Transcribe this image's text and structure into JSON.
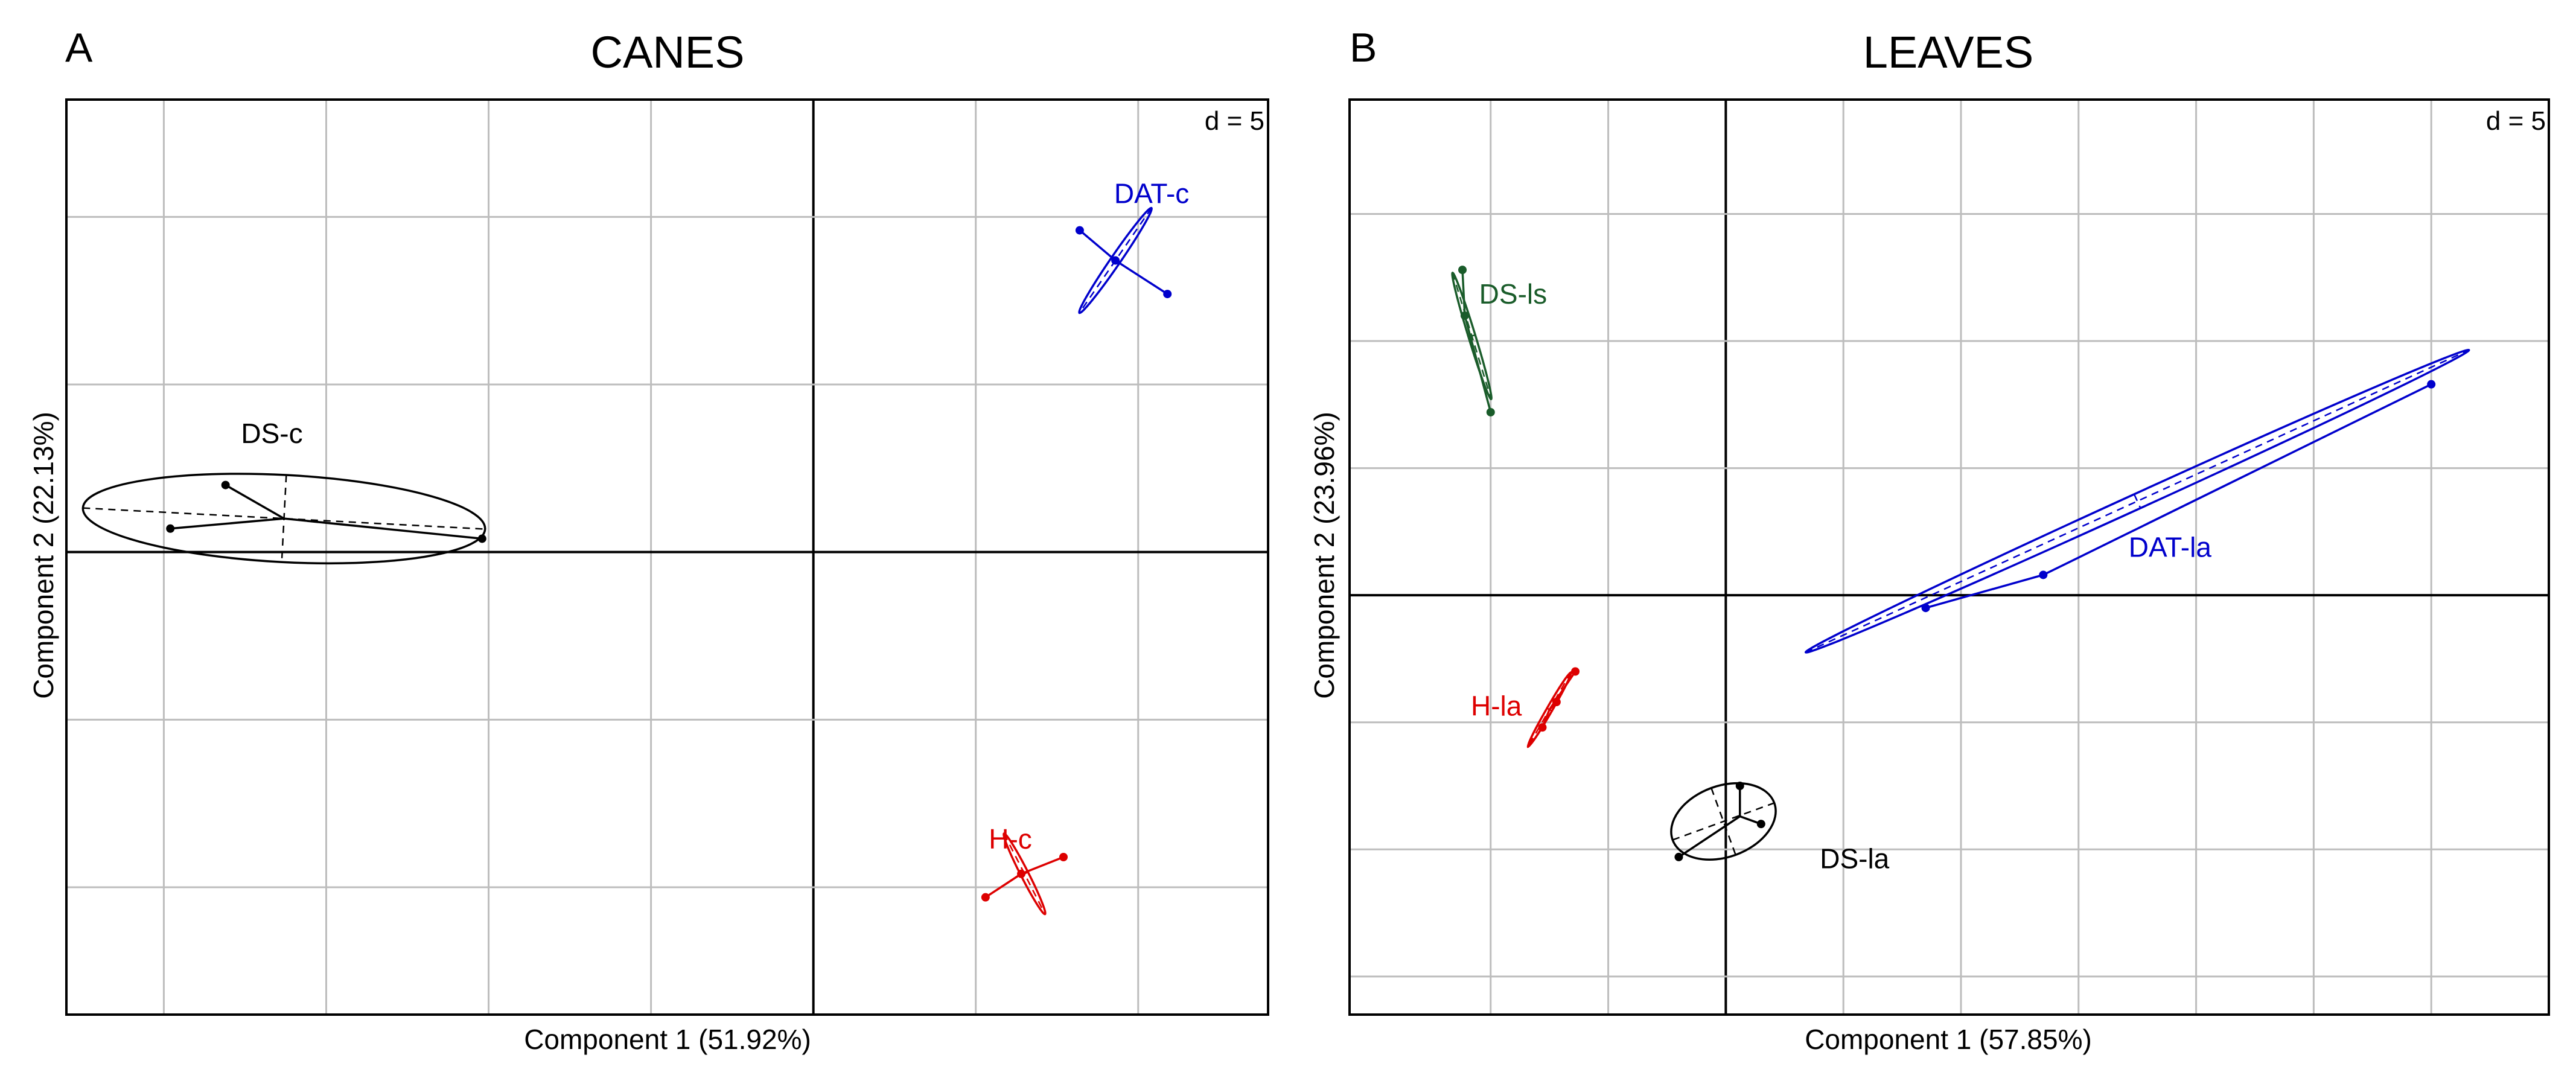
{
  "colors": {
    "grid": "#bdbdbd",
    "axis_zero": "#000000",
    "frame": "#000000",
    "dat": "#0000cc",
    "h": "#dd0000",
    "ds": "#000000",
    "ds_ls": "#1a5c2a"
  },
  "chart_data": [
    {
      "type": "scatter",
      "panel_label": "A",
      "title": "CANES",
      "xlabel": "Component 1 (51.92%)",
      "ylabel": "Component 2 (22.13%)",
      "scale_label": "d = 5",
      "grid": true,
      "xlim": [
        -23.0,
        14.0
      ],
      "ylim": [
        -13.8,
        13.5
      ],
      "x_gridlines": [
        -20,
        -15,
        -10,
        -5,
        0,
        5,
        10
      ],
      "y_gridlines": [
        -10,
        -5,
        0,
        5,
        10
      ],
      "groups": [
        {
          "name": "DAT-c",
          "color_key": "dat",
          "center": [
            9.3,
            8.7
          ],
          "points": [
            [
              8.2,
              9.6
            ],
            [
              9.3,
              8.7
            ],
            [
              10.9,
              7.7
            ]
          ],
          "ellipse": {
            "center": [
              9.3,
              8.7
            ],
            "radii": [
              0.15,
              1.9
            ],
            "angle_deg": 34.5
          }
        },
        {
          "name": "H-c",
          "color_key": "h",
          "center": [
            6.4,
            -9.6
          ],
          "points": [
            [
              5.3,
              -10.3
            ],
            [
              6.4,
              -9.6
            ],
            [
              7.7,
              -9.1
            ]
          ],
          "ellipse": {
            "center": [
              6.5,
              -9.6
            ],
            "radii": [
              0.12,
              1.35
            ],
            "angle_deg": -27
          }
        },
        {
          "name": "DS-c",
          "color_key": "ds",
          "center": [
            -16.3,
            1.0
          ],
          "points": [
            [
              -18.1,
              2.0
            ],
            [
              -19.8,
              0.7
            ],
            [
              -10.2,
              0.4
            ]
          ],
          "ellipse": {
            "center": [
              -16.3,
              1.0
            ],
            "radii": [
              6.2,
              1.3
            ],
            "angle_deg": 3
          }
        }
      ]
    },
    {
      "type": "scatter",
      "panel_label": "B",
      "title": "LEAVES",
      "xlabel": "Component 1 (57.85%)",
      "ylabel": "Component 2 (23.96%)",
      "scale_label": "d = 5",
      "grid": true,
      "xlim": [
        -16.0,
        35.0
      ],
      "ylim": [
        -16.5,
        19.5
      ],
      "x_gridlines": [
        -10,
        -5,
        0,
        5,
        10,
        15,
        20,
        25,
        30
      ],
      "y_gridlines": [
        -15,
        -10,
        -5,
        0,
        5,
        10,
        15
      ],
      "groups": [
        {
          "name": "DAT-la",
          "color_key": "dat",
          "center": [
            13.5,
            0.8
          ],
          "points": [
            [
              8.5,
              -0.5
            ],
            [
              13.5,
              0.8
            ],
            [
              30.0,
              8.3
            ]
          ],
          "ellipse": {
            "center": [
              17.5,
              3.7
            ],
            "radii": [
              15.5,
              0.3
            ],
            "angle_deg": -24.5
          }
        },
        {
          "name": "H-la",
          "color_key": "h",
          "center": [
            -7.5,
            -4.5
          ],
          "points": [
            [
              -7.2,
              -4.2
            ],
            [
              -7.8,
              -5.2
            ],
            [
              -6.4,
              -3.0
            ]
          ],
          "ellipse": {
            "center": [
              -7.5,
              -4.5
            ],
            "radii": [
              0.12,
              1.7
            ],
            "angle_deg": 30
          }
        },
        {
          "name": "DS-la",
          "color_key": "ds",
          "center": [
            0.6,
            -8.7
          ],
          "points": [
            [
              0.6,
              -7.5
            ],
            [
              1.5,
              -9.0
            ],
            [
              -2.0,
              -10.3
            ]
          ],
          "ellipse": {
            "center": [
              -0.1,
              -8.9
            ],
            "radii": [
              2.3,
              1.4
            ],
            "angle_deg": -20
          }
        },
        {
          "name": "DS-ls",
          "color_key": "ds_ls",
          "center": [
            -11.1,
            11.0
          ],
          "points": [
            [
              -11.2,
              12.8
            ],
            [
              -11.1,
              11.0
            ],
            [
              -10.0,
              7.2
            ]
          ],
          "ellipse": {
            "center": [
              -10.8,
              10.2
            ],
            "radii": [
              0.15,
              2.6
            ],
            "angle_deg": -17
          }
        }
      ]
    }
  ]
}
